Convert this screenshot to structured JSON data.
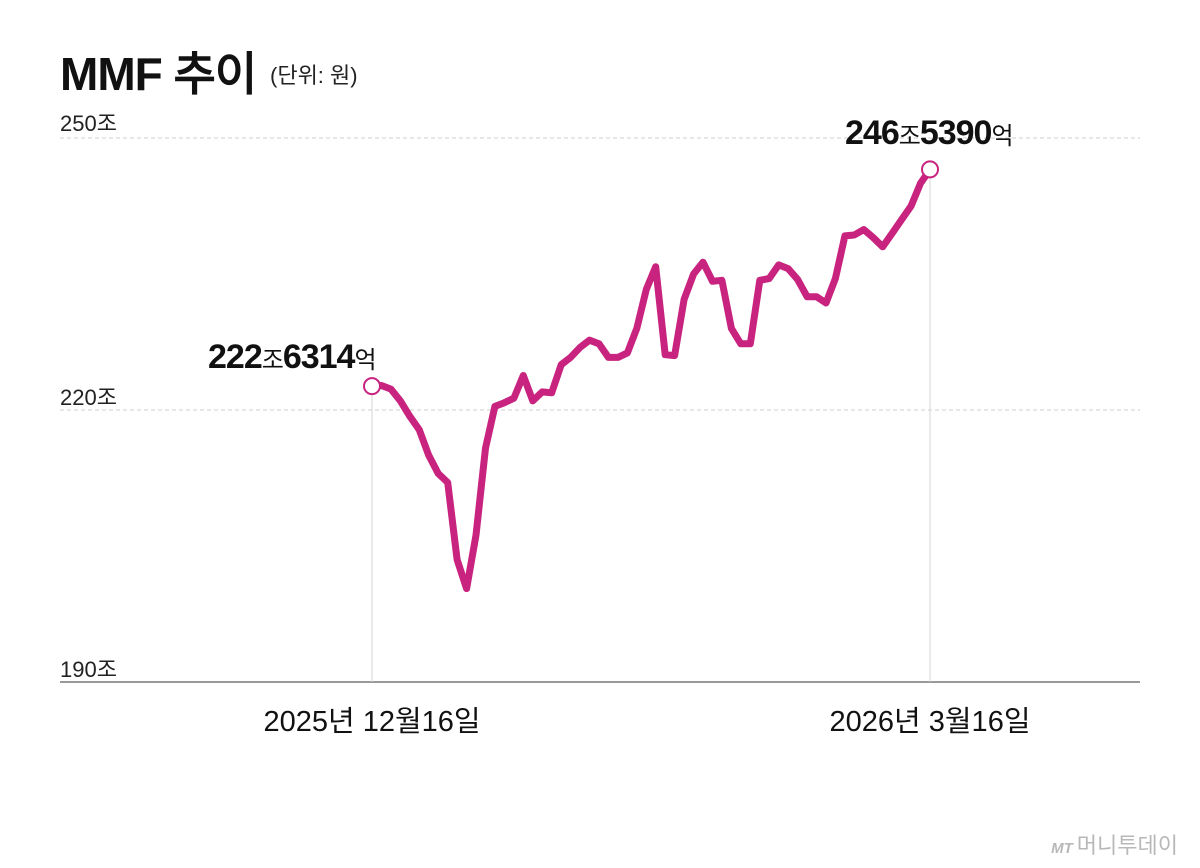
{
  "title": "MMF 추이",
  "unit": "(단위: 원)",
  "logo": {
    "mark": "MT",
    "text": "머니투데이"
  },
  "chart_data": {
    "type": "line",
    "title": "MMF 추이",
    "ylabel": "",
    "xlabel": "",
    "ylim": [
      190,
      250
    ],
    "y_ticks": [
      "250조",
      "220조",
      "190조"
    ],
    "x_ticks": [
      "2025년 12월16일",
      "2026년 3월16일"
    ],
    "grid": true,
    "line_color": "#c8237f",
    "series": [
      {
        "values": [
          222.6,
          222.7,
          222.3,
          221.0,
          219.3,
          217.8,
          215.0,
          213.0,
          212.0,
          203.5,
          200.3,
          206.2,
          215.8,
          220.4,
          220.8,
          221.3,
          223.8,
          221.0,
          222.0,
          221.9,
          225.0,
          225.8,
          226.9,
          227.7,
          227.3,
          225.8,
          225.8,
          226.3,
          229.0,
          233.3,
          235.8,
          226.1,
          226.0,
          232.2,
          235.0,
          236.3,
          234.2,
          234.3,
          229.0,
          227.3,
          227.3,
          234.3,
          234.5,
          236.0,
          235.6,
          234.4,
          232.5,
          232.5,
          231.8,
          234.5,
          239.2,
          239.3,
          239.9,
          239.0,
          238.0,
          239.5,
          241.0,
          242.5,
          245.0,
          246.5
        ]
      }
    ],
    "annotations": [
      {
        "index": 0,
        "value": 222.6314,
        "big_1": "222",
        "small_1": "조",
        "big_2": "6314",
        "small_2": "억"
      },
      {
        "index": 59,
        "value": 246.539,
        "big_1": "246",
        "small_1": "조",
        "big_2": "5390",
        "small_2": "억"
      }
    ]
  }
}
